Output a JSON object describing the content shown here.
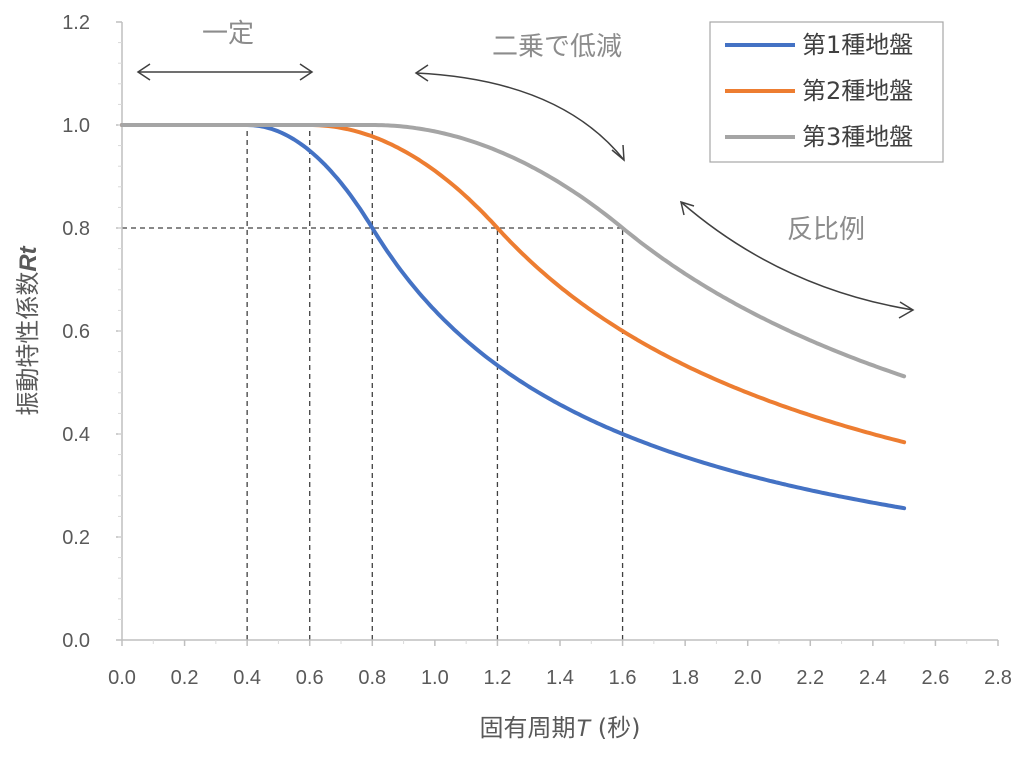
{
  "chart_data": {
    "type": "line",
    "xlabel": "固有周期",
    "xlabel_var": "T",
    "xlabel_unit": " (秒)",
    "ylabel": "振動特性係数",
    "ylabel_var": "Rt",
    "xlim": [
      0,
      2.8
    ],
    "ylim": [
      0,
      1.2
    ],
    "x_ticks": [
      "0.0",
      "0.2",
      "0.4",
      "0.6",
      "0.8",
      "1.0",
      "1.2",
      "1.4",
      "1.6",
      "1.8",
      "2.0",
      "2.2",
      "2.4",
      "2.6",
      "2.8"
    ],
    "y_ticks": [
      "0.0",
      "0.2",
      "0.4",
      "0.6",
      "0.8",
      "1.0",
      "1.2"
    ],
    "legend_position": "top-right",
    "series": [
      {
        "name": "第1種地盤",
        "color": "#4472c4",
        "Tc": 0.4
      },
      {
        "name": "第2種地盤",
        "color": "#ed7d31",
        "Tc": 0.6
      },
      {
        "name": "第3種地盤",
        "color": "#a5a5a5",
        "Tc": 0.8
      }
    ],
    "x_range": [
      0,
      2.5
    ],
    "reference_lines": {
      "vertical_x": [
        0.4,
        0.6,
        0.8,
        1.2,
        1.6
      ],
      "horizontal_y": [
        0.8
      ]
    },
    "annotations": {
      "constant": "一定",
      "square_decrease": "二乗で低減",
      "inverse": "反比例"
    }
  }
}
